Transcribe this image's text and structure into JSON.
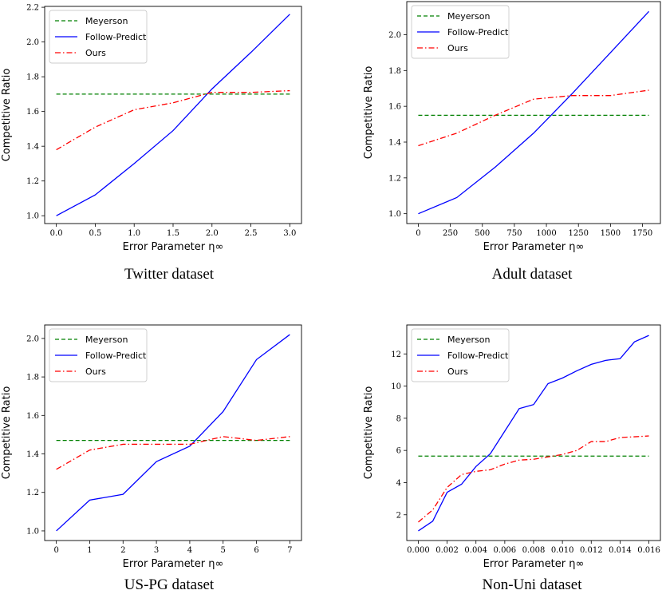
{
  "chart_data": [
    {
      "type": "line",
      "caption": "Twitter dataset",
      "xlabel": "Error Parameter η∞",
      "ylabel": "Competitive Ratio",
      "xlim": [
        -0.15,
        3.15
      ],
      "ylim": [
        0.955,
        2.205
      ],
      "xticks": [
        0.0,
        0.5,
        1.0,
        1.5,
        2.0,
        2.5,
        3.0
      ],
      "xtick_labels": [
        "0.0",
        "0.5",
        "1.0",
        "1.5",
        "2.0",
        "2.5",
        "3.0"
      ],
      "yticks": [
        1.0,
        1.2,
        1.4,
        1.6,
        1.8,
        2.0,
        2.2
      ],
      "ytick_labels": [
        "1.0",
        "1.2",
        "1.4",
        "1.6",
        "1.8",
        "2.0",
        "2.2"
      ],
      "legend": "top-left",
      "series": [
        {
          "name": "Meyerson",
          "color": "#008000",
          "style": "dashed",
          "x": [
            0.0,
            3.0
          ],
          "y": [
            1.7,
            1.7
          ]
        },
        {
          "name": "Follow-Predict",
          "color": "#0000ff",
          "style": "solid",
          "x": [
            0.0,
            0.5,
            1.0,
            1.5,
            2.0,
            2.5,
            3.0
          ],
          "y": [
            1.0,
            1.12,
            1.3,
            1.49,
            1.73,
            1.94,
            2.16
          ]
        },
        {
          "name": "Ours",
          "color": "#ff0000",
          "style": "dashdot",
          "x": [
            0.0,
            0.5,
            1.0,
            1.5,
            2.0,
            2.5,
            3.0
          ],
          "y": [
            1.38,
            1.51,
            1.61,
            1.65,
            1.71,
            1.71,
            1.72
          ]
        }
      ]
    },
    {
      "type": "line",
      "caption": "Adult dataset",
      "xlabel": "Error Parameter η∞",
      "ylabel": "Competitive Ratio",
      "xlim": [
        -90,
        1890
      ],
      "ylim": [
        0.945,
        2.185
      ],
      "xticks": [
        0,
        250,
        500,
        750,
        1000,
        1250,
        1500,
        1750
      ],
      "xtick_labels": [
        "0",
        "250",
        "500",
        "750",
        "1000",
        "1250",
        "1500",
        "1750"
      ],
      "yticks": [
        1.0,
        1.2,
        1.4,
        1.6,
        1.8,
        2.0
      ],
      "ytick_labels": [
        "1.0",
        "1.2",
        "1.4",
        "1.6",
        "1.8",
        "2.0"
      ],
      "legend": "top-left",
      "series": [
        {
          "name": "Meyerson",
          "color": "#008000",
          "style": "dashed",
          "x": [
            0,
            1800
          ],
          "y": [
            1.55,
            1.55
          ]
        },
        {
          "name": "Follow-Predict",
          "color": "#0000ff",
          "style": "solid",
          "x": [
            0,
            300,
            600,
            900,
            1200,
            1500,
            1800
          ],
          "y": [
            1.0,
            1.09,
            1.26,
            1.45,
            1.67,
            1.9,
            2.13
          ]
        },
        {
          "name": "Ours",
          "color": "#ff0000",
          "style": "dashdot",
          "x": [
            0,
            300,
            600,
            900,
            1200,
            1500,
            1800
          ],
          "y": [
            1.38,
            1.45,
            1.55,
            1.64,
            1.66,
            1.66,
            1.69
          ]
        }
      ]
    },
    {
      "type": "line",
      "caption": "US-PG dataset",
      "xlabel": "Error Parameter η∞",
      "ylabel": "Competitive Ratio",
      "xlim": [
        -0.35,
        7.35
      ],
      "ylim": [
        0.95,
        2.07
      ],
      "xticks": [
        0,
        1,
        2,
        3,
        4,
        5,
        6,
        7
      ],
      "xtick_labels": [
        "0",
        "1",
        "2",
        "3",
        "4",
        "5",
        "6",
        "7"
      ],
      "yticks": [
        1.0,
        1.2,
        1.4,
        1.6,
        1.8,
        2.0
      ],
      "ytick_labels": [
        "1.0",
        "1.2",
        "1.4",
        "1.6",
        "1.8",
        "2.0"
      ],
      "legend": "top-left",
      "series": [
        {
          "name": "Meyerson",
          "color": "#008000",
          "style": "dashed",
          "x": [
            0,
            7
          ],
          "y": [
            1.47,
            1.47
          ]
        },
        {
          "name": "Follow-Predict",
          "color": "#0000ff",
          "style": "solid",
          "x": [
            0,
            1,
            2,
            3,
            4,
            5,
            6,
            7
          ],
          "y": [
            1.0,
            1.16,
            1.19,
            1.36,
            1.44,
            1.62,
            1.89,
            2.02
          ]
        },
        {
          "name": "Ours",
          "color": "#ff0000",
          "style": "dashdot",
          "x": [
            0,
            1,
            2,
            3,
            4,
            5,
            6,
            7
          ],
          "y": [
            1.32,
            1.42,
            1.45,
            1.45,
            1.45,
            1.49,
            1.47,
            1.49
          ]
        }
      ]
    },
    {
      "type": "line",
      "caption": "Non-Uni dataset",
      "xlabel": "Error Parameter η∞",
      "ylabel": "Competitive Ratio",
      "xlim": [
        -0.0008,
        0.0168
      ],
      "ylim": [
        0.4,
        13.8
      ],
      "xticks": [
        0.0,
        0.002,
        0.004,
        0.006,
        0.008,
        0.01,
        0.012,
        0.014,
        0.016
      ],
      "xtick_labels": [
        "0.000",
        "0.002",
        "0.004",
        "0.006",
        "0.008",
        "0.010",
        "0.012",
        "0.014",
        "0.016"
      ],
      "yticks": [
        2,
        4,
        6,
        8,
        10,
        12
      ],
      "ytick_labels": [
        "2",
        "4",
        "6",
        "8",
        "10",
        "12"
      ],
      "legend": "top-left",
      "series": [
        {
          "name": "Meyerson",
          "color": "#008000",
          "style": "dashed",
          "x": [
            0.0,
            0.016
          ],
          "y": [
            5.65,
            5.65
          ]
        },
        {
          "name": "Follow-Predict",
          "color": "#0000ff",
          "style": "solid",
          "x": [
            0.0,
            0.001,
            0.002,
            0.003,
            0.004,
            0.005,
            0.006,
            0.007,
            0.008,
            0.009,
            0.01,
            0.011,
            0.012,
            0.013,
            0.014,
            0.015,
            0.016
          ],
          "y": [
            1.0,
            1.6,
            3.4,
            3.9,
            5.0,
            5.8,
            7.2,
            8.6,
            8.85,
            10.15,
            10.5,
            10.95,
            11.35,
            11.6,
            11.7,
            12.75,
            13.15
          ]
        },
        {
          "name": "Ours",
          "color": "#ff0000",
          "style": "dashdot",
          "x": [
            0.0,
            0.001,
            0.002,
            0.003,
            0.004,
            0.005,
            0.006,
            0.007,
            0.008,
            0.009,
            0.01,
            0.011,
            0.012,
            0.013,
            0.014,
            0.015,
            0.016
          ],
          "y": [
            1.55,
            2.3,
            3.7,
            4.5,
            4.7,
            4.8,
            5.15,
            5.4,
            5.45,
            5.6,
            5.75,
            6.0,
            6.55,
            6.55,
            6.8,
            6.85,
            6.9
          ]
        }
      ]
    }
  ]
}
